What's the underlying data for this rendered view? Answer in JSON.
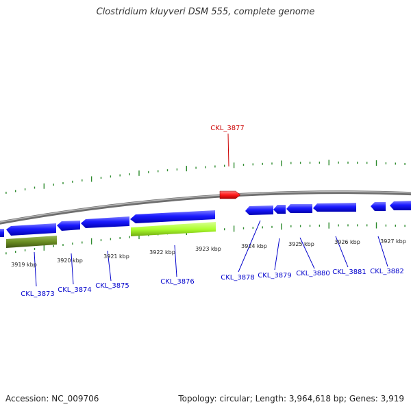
{
  "title": "Clostridium kluyveri DSM 555, complete genome",
  "footer": {
    "accession": "Accession: NC_009706",
    "topology": "Topology: circular; Length: 3,964,618 bp; Genes: 3,919"
  },
  "colors": {
    "backbone": "#8c8c8c",
    "forward_gene": "#ff0000",
    "reverse_gene": "#0000ff",
    "rrna_like": "#6b8e23",
    "highlight_block": "#adff2f",
    "tick": "#2e8b2e",
    "label_red": "#cc0000",
    "label_blue": "#0000cc"
  },
  "axis_ticks": [
    {
      "label": "3919 kbp"
    },
    {
      "label": "3920 kbp"
    },
    {
      "label": "3921 kbp"
    },
    {
      "label": "3922 kbp"
    },
    {
      "label": "3923 kbp"
    },
    {
      "label": "3924 kbp"
    },
    {
      "label": "3925 kbp"
    },
    {
      "label": "3926 kbp"
    },
    {
      "label": "3927 kbp"
    }
  ],
  "gene_labels": [
    {
      "name": "CKL_3877",
      "strand": "forward"
    },
    {
      "name": "CKL_3873",
      "strand": "reverse"
    },
    {
      "name": "CKL_3874",
      "strand": "reverse"
    },
    {
      "name": "CKL_3875",
      "strand": "reverse"
    },
    {
      "name": "CKL_3876",
      "strand": "reverse"
    },
    {
      "name": "CKL_3878",
      "strand": "reverse"
    },
    {
      "name": "CKL_3879",
      "strand": "reverse"
    },
    {
      "name": "CKL_3880",
      "strand": "reverse"
    },
    {
      "name": "CKL_3881",
      "strand": "reverse"
    },
    {
      "name": "CKL_3882",
      "strand": "reverse"
    }
  ]
}
